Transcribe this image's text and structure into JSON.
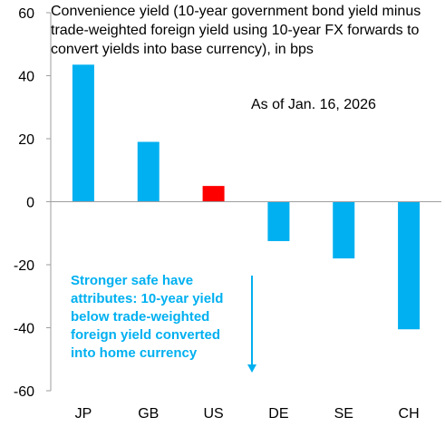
{
  "chart_data": {
    "type": "bar",
    "title": "Convenience yield (10-year government bond yield minus trade-weighted foreign yield using 10-year FX forwards to convert yields into base currency), in bps",
    "categories": [
      "JP",
      "GB",
      "US",
      "DE",
      "SE",
      "CH"
    ],
    "values": [
      43.5,
      19,
      5,
      -12.5,
      -18,
      -40.5
    ],
    "ylim": [
      -60,
      60
    ],
    "yticks": [
      "60",
      "40",
      "20",
      "0",
      "-20",
      "-40",
      "-60"
    ],
    "xlabel": "",
    "ylabel": "",
    "grid": false,
    "bar_colors": [
      "#00b0f0",
      "#00b0f0",
      "#ff0000",
      "#00b0f0",
      "#00b0f0",
      "#00b0f0"
    ],
    "annotations": {
      "as_of": "As of Jan. 16, 2026",
      "note": "Stronger safe have attributes: 10-year yield below trade-weighted foreign yield converted into home currency"
    },
    "arrow_color": "#00b0f0"
  }
}
